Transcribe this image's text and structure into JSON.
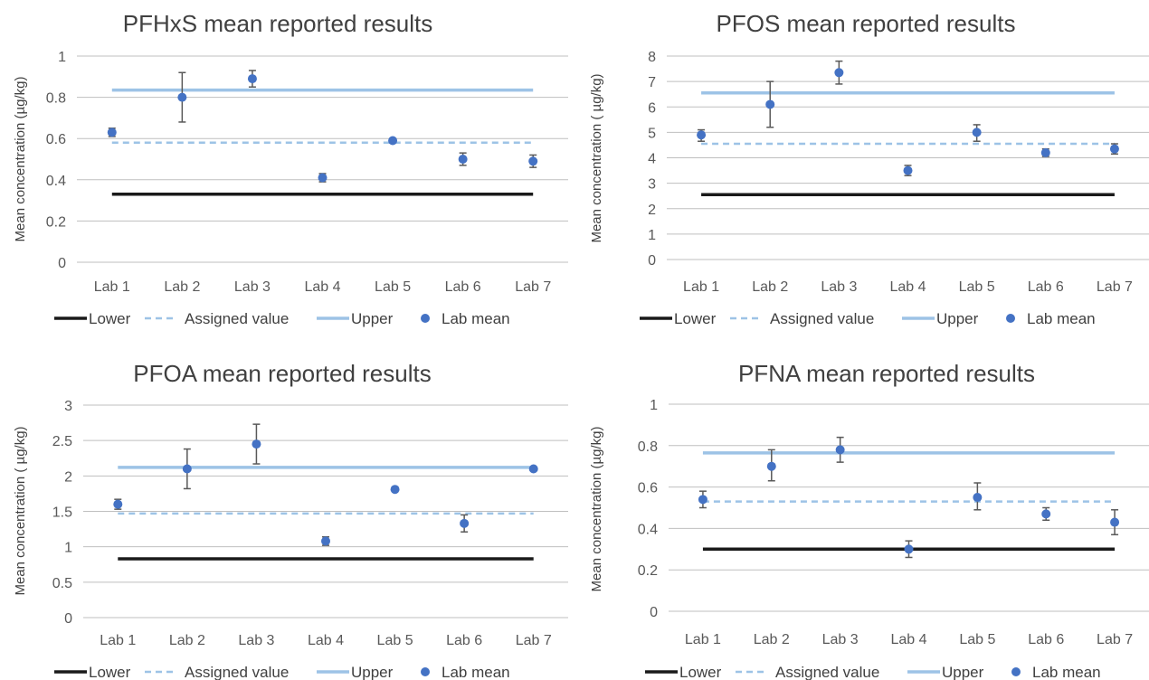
{
  "legend": {
    "lower": "Lower",
    "assigned": "Assigned value",
    "upper": "Upper",
    "lab_mean": "Lab mean"
  },
  "colors": {
    "lower": "#1a1a1a",
    "assigned": "#9dc3e6",
    "upper": "#9dc3e6",
    "lab_mean": "#4472c4",
    "error_bar": "#595959",
    "grid": "#bfbfbf"
  },
  "chart_data": [
    {
      "type": "scatter",
      "title": "PFHxS mean reported results",
      "ylabel": "Mean concentration (µg/kg)",
      "xlabel": "",
      "categories": [
        "Lab 1",
        "Lab 2",
        "Lab 3",
        "Lab 4",
        "Lab 5",
        "Lab 6",
        "Lab 7"
      ],
      "ylim": [
        0,
        1
      ],
      "yticks": [
        0,
        0.2,
        0.4,
        0.6,
        0.8,
        1
      ],
      "ytick_labels": [
        "0",
        "0.2",
        "0.4",
        "0.6",
        "0.8",
        "1"
      ],
      "lower": 0.33,
      "assigned_value": 0.58,
      "upper": 0.835,
      "lab_mean": [
        0.63,
        0.8,
        0.89,
        0.41,
        0.59,
        0.5,
        0.49
      ],
      "error_low": [
        0.61,
        0.68,
        0.85,
        0.39,
        0.58,
        0.47,
        0.46
      ],
      "error_high": [
        0.65,
        0.92,
        0.93,
        0.43,
        0.6,
        0.53,
        0.52
      ],
      "legend_position": "bottom",
      "grid": true
    },
    {
      "type": "scatter",
      "title": "PFOS mean reported results",
      "ylabel": "Mean concentration ( µg/kg)",
      "xlabel": "",
      "categories": [
        "Lab 1",
        "Lab 2",
        "Lab 3",
        "Lab 4",
        "Lab 5",
        "Lab 6",
        "Lab 7"
      ],
      "ylim": [
        0,
        8
      ],
      "yticks": [
        0,
        1,
        2,
        3,
        4,
        5,
        6,
        7,
        8
      ],
      "ytick_labels": [
        "0",
        "1",
        "2",
        "3",
        "4",
        "5",
        "6",
        "7",
        "8"
      ],
      "lower": 2.55,
      "assigned_value": 4.55,
      "upper": 6.55,
      "lab_mean": [
        4.9,
        6.1,
        7.35,
        3.5,
        5.0,
        4.2,
        4.35
      ],
      "error_low": [
        4.65,
        5.2,
        6.9,
        3.3,
        4.65,
        4.05,
        4.15
      ],
      "error_high": [
        5.1,
        7.0,
        7.8,
        3.7,
        5.3,
        4.35,
        4.55
      ],
      "legend_position": "bottom",
      "grid": true
    },
    {
      "type": "scatter",
      "title": "PFOA mean reported results",
      "ylabel": "Mean concentration ( µg/kg)",
      "xlabel": "",
      "categories": [
        "Lab 1",
        "Lab 2",
        "Lab 3",
        "Lab 4",
        "Lab 5",
        "Lab 6",
        "Lab 7"
      ],
      "ylim": [
        0,
        3
      ],
      "yticks": [
        0,
        0.5,
        1,
        1.5,
        2,
        2.5,
        3
      ],
      "ytick_labels": [
        "0",
        "0.5",
        "1",
        "1.5",
        "2",
        "2.5",
        "3"
      ],
      "lower": 0.83,
      "assigned_value": 1.47,
      "upper": 2.12,
      "lab_mean": [
        1.6,
        2.1,
        2.45,
        1.08,
        1.81,
        1.33,
        2.1
      ],
      "error_low": [
        1.53,
        1.82,
        2.17,
        1.02,
        1.81,
        1.21,
        2.1
      ],
      "error_high": [
        1.67,
        2.38,
        2.73,
        1.14,
        1.81,
        1.45,
        2.1
      ],
      "legend_position": "bottom",
      "grid": true
    },
    {
      "type": "scatter",
      "title": "PFNA mean reported results",
      "ylabel": "Mean concentration (µg/kg)",
      "xlabel": "",
      "categories": [
        "Lab 1",
        "Lab 2",
        "Lab 3",
        "Lab 4",
        "Lab 5",
        "Lab 6",
        "Lab 7"
      ],
      "ylim": [
        0,
        1
      ],
      "yticks": [
        0,
        0.2,
        0.4,
        0.6,
        0.8,
        1
      ],
      "ytick_labels": [
        "0",
        "0.2",
        "0.4",
        "0.6",
        "0.8",
        "1"
      ],
      "lower": 0.3,
      "assigned_value": 0.53,
      "upper": 0.765,
      "lab_mean": [
        0.54,
        0.7,
        0.78,
        0.3,
        0.55,
        0.47,
        0.43
      ],
      "error_low": [
        0.5,
        0.63,
        0.72,
        0.26,
        0.49,
        0.44,
        0.37
      ],
      "error_high": [
        0.58,
        0.78,
        0.84,
        0.34,
        0.62,
        0.5,
        0.49
      ],
      "legend_position": "bottom",
      "grid": true
    }
  ]
}
